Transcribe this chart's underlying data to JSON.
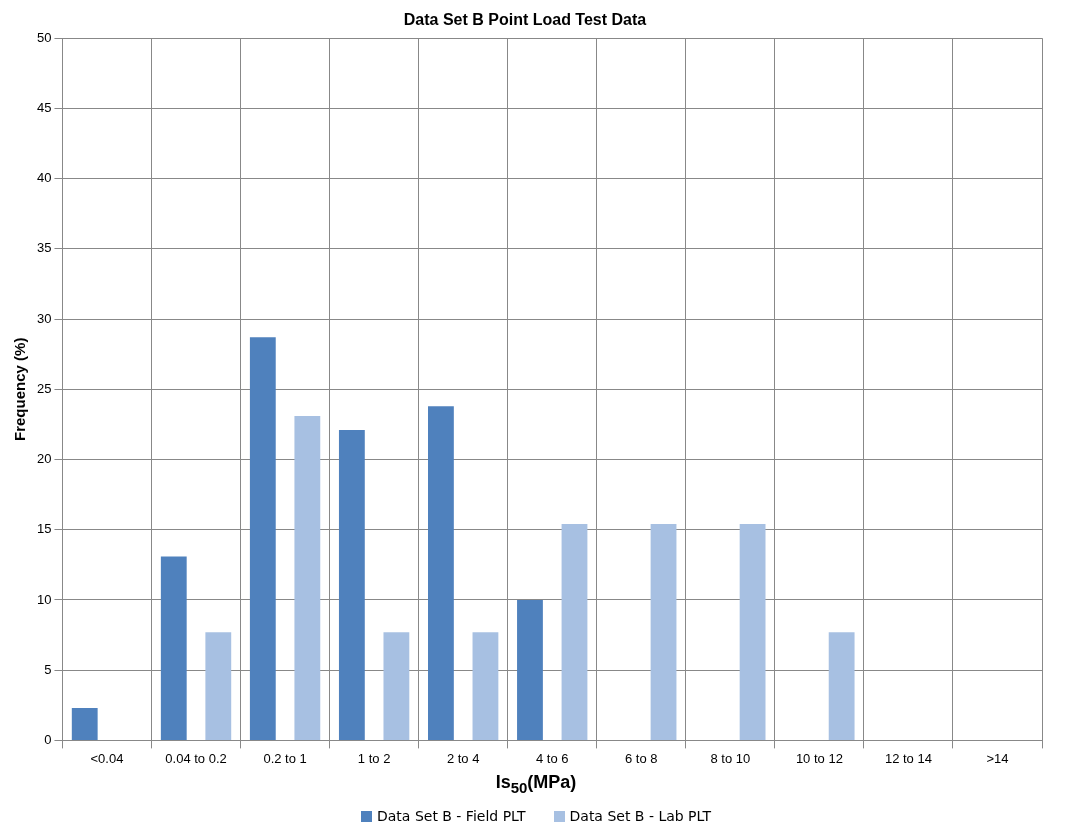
{
  "chart_data": {
    "type": "bar",
    "title": "Data Set B Point Load Test Data",
    "xlabel": "Is$_{50}$(MPa)",
    "ylabel": "Frequency (%)",
    "categories": [
      "<0.04",
      "0.04 to 0.2",
      "0.2 to 1",
      "1 to 2",
      "2 to 4",
      "4 to 6",
      "6 to 8",
      "8 to 10",
      "10 to 12",
      "12 to 14",
      ">14"
    ],
    "series": [
      {
        "name": "Data Set B - Field PLT",
        "color": "#4f81bd",
        "values": [
          2.3,
          13.1,
          28.7,
          22.1,
          23.8,
          10,
          0,
          0,
          0,
          0,
          0
        ]
      },
      {
        "name": "Data Set B - Lab PLT",
        "color": "#a7c0e2",
        "values": [
          0,
          7.7,
          23.1,
          7.7,
          7.7,
          15.4,
          15.4,
          15.4,
          7.7,
          0,
          0
        ]
      }
    ],
    "ylim": [
      0,
      50
    ],
    "yticks": [
      0,
      5,
      10,
      15,
      20,
      25,
      30,
      35,
      40,
      45,
      50
    ],
    "grid": true,
    "legend": "bottom"
  }
}
